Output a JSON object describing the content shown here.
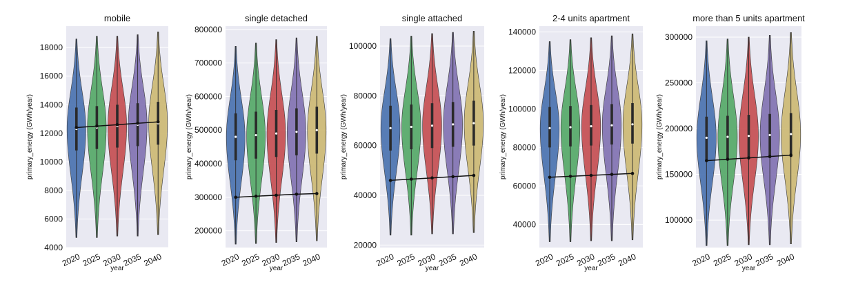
{
  "chart_data": [
    {
      "type": "violin",
      "title": "mobile",
      "xlabel": "year",
      "ylabel": "primary_energy (GWh/year)",
      "categories": [
        "2020",
        "2025",
        "2030",
        "2035",
        "2040"
      ],
      "ylim": [
        4000,
        19500
      ],
      "yticks": [
        4000,
        6000,
        8000,
        10000,
        12000,
        14000,
        16000,
        18000
      ],
      "ytick_labels": [
        "4000",
        "6000",
        "8000",
        "10000",
        "12000",
        "14000",
        "16000",
        "18000"
      ],
      "violins": [
        {
          "min": 4700,
          "max": 18600,
          "median": 12300,
          "q1": 10800,
          "q3": 13800,
          "peak": 12300
        },
        {
          "min": 4700,
          "max": 18800,
          "median": 12400,
          "q1": 10900,
          "q3": 13900,
          "peak": 12400
        },
        {
          "min": 4800,
          "max": 18800,
          "median": 12500,
          "q1": 11000,
          "q3": 14000,
          "peak": 12500
        },
        {
          "min": 4800,
          "max": 18900,
          "median": 12600,
          "q1": 11100,
          "q3": 14100,
          "peak": 12600
        },
        {
          "min": 4900,
          "max": 19100,
          "median": 12700,
          "q1": 11200,
          "q3": 14200,
          "peak": 12700
        }
      ],
      "trend_line": [
        12400,
        12500,
        12600,
        12700,
        12800
      ]
    },
    {
      "type": "violin",
      "title": "single detached",
      "xlabel": "year",
      "ylabel": "primary_energy (GWh/year)",
      "categories": [
        "2020",
        "2025",
        "2030",
        "2035",
        "2040"
      ],
      "ylim": [
        150000,
        810000
      ],
      "yticks": [
        200000,
        300000,
        400000,
        500000,
        600000,
        700000,
        800000
      ],
      "ytick_labels": [
        "200000",
        "300000",
        "400000",
        "500000",
        "600000",
        "700000",
        "800000"
      ],
      "violins": [
        {
          "min": 160000,
          "max": 750000,
          "median": 480000,
          "q1": 410000,
          "q3": 550000,
          "peak": 480000
        },
        {
          "min": 162000,
          "max": 760000,
          "median": 485000,
          "q1": 415000,
          "q3": 555000,
          "peak": 485000
        },
        {
          "min": 165000,
          "max": 770000,
          "median": 490000,
          "q1": 420000,
          "q3": 560000,
          "peak": 490000
        },
        {
          "min": 167000,
          "max": 775000,
          "median": 495000,
          "q1": 425000,
          "q3": 565000,
          "peak": 495000
        },
        {
          "min": 170000,
          "max": 780000,
          "median": 500000,
          "q1": 430000,
          "q3": 570000,
          "peak": 500000
        }
      ],
      "trend_line": [
        300000,
        303000,
        306000,
        309000,
        311000
      ]
    },
    {
      "type": "violin",
      "title": "single attached",
      "xlabel": "year",
      "ylabel": "primary_energy (GWh/year)",
      "categories": [
        "2020",
        "2025",
        "2030",
        "2035",
        "2040"
      ],
      "ylim": [
        19000,
        108000
      ],
      "yticks": [
        20000,
        40000,
        60000,
        80000,
        100000
      ],
      "ytick_labels": [
        "20000",
        "40000",
        "60000",
        "80000",
        "100000"
      ],
      "violins": [
        {
          "min": 24000,
          "max": 103000,
          "median": 67000,
          "q1": 58000,
          "q3": 76000,
          "peak": 67000
        },
        {
          "min": 24000,
          "max": 104000,
          "median": 67500,
          "q1": 58500,
          "q3": 76500,
          "peak": 67500
        },
        {
          "min": 24500,
          "max": 105000,
          "median": 68000,
          "q1": 59000,
          "q3": 77000,
          "peak": 68000
        },
        {
          "min": 24500,
          "max": 105500,
          "median": 68500,
          "q1": 59500,
          "q3": 77500,
          "peak": 68500
        },
        {
          "min": 25000,
          "max": 106000,
          "median": 69000,
          "q1": 60000,
          "q3": 78000,
          "peak": 69000
        }
      ],
      "trend_line": [
        46000,
        46500,
        47000,
        47500,
        48000
      ]
    },
    {
      "type": "violin",
      "title": "2-4 units apartment",
      "xlabel": "year",
      "ylabel": "primary_energy (GWh/year)",
      "categories": [
        "2020",
        "2025",
        "2030",
        "2035",
        "2040"
      ],
      "ylim": [
        28000,
        143000
      ],
      "yticks": [
        40000,
        60000,
        80000,
        100000,
        120000,
        140000
      ],
      "ytick_labels": [
        "40000",
        "60000",
        "80000",
        "100000",
        "120000",
        "140000"
      ],
      "violins": [
        {
          "min": 31000,
          "max": 135000,
          "median": 90000,
          "q1": 80000,
          "q3": 101000,
          "peak": 90000
        },
        {
          "min": 31000,
          "max": 136000,
          "median": 90500,
          "q1": 80500,
          "q3": 101500,
          "peak": 90500
        },
        {
          "min": 31500,
          "max": 137000,
          "median": 91000,
          "q1": 81000,
          "q3": 102000,
          "peak": 91000
        },
        {
          "min": 31500,
          "max": 138000,
          "median": 91500,
          "q1": 81500,
          "q3": 102500,
          "peak": 91500
        },
        {
          "min": 32000,
          "max": 139000,
          "median": 92000,
          "q1": 82000,
          "q3": 103000,
          "peak": 92000
        }
      ],
      "trend_line": [
        64500,
        65000,
        65500,
        66000,
        66500
      ]
    },
    {
      "type": "violin",
      "title": "more than 5 units apartment",
      "xlabel": "year",
      "ylabel": "primary_energy (GWh/year)",
      "categories": [
        "2020",
        "2025",
        "2030",
        "2035",
        "2040"
      ],
      "ylim": [
        70000,
        312000
      ],
      "yticks": [
        100000,
        150000,
        200000,
        250000,
        300000
      ],
      "ytick_labels": [
        "100000",
        "150000",
        "200000",
        "250000",
        "300000"
      ],
      "violins": [
        {
          "min": 72000,
          "max": 296000,
          "median": 190000,
          "q1": 165000,
          "q3": 213000,
          "peak": 190000
        },
        {
          "min": 72000,
          "max": 298000,
          "median": 191000,
          "q1": 166000,
          "q3": 214000,
          "peak": 191000
        },
        {
          "min": 73000,
          "max": 300000,
          "median": 192000,
          "q1": 167000,
          "q3": 215000,
          "peak": 192000
        },
        {
          "min": 73000,
          "max": 302000,
          "median": 193000,
          "q1": 168000,
          "q3": 216000,
          "peak": 193000
        },
        {
          "min": 74000,
          "max": 305000,
          "median": 194000,
          "q1": 169000,
          "q3": 217000,
          "peak": 194000
        }
      ],
      "trend_line": [
        165000,
        166500,
        168000,
        169500,
        171000
      ]
    }
  ],
  "colors": {
    "plot_background": "#e9e9f2",
    "series": [
      "#4a72b0",
      "#55a868",
      "#c44e52",
      "#8172b2",
      "#ccb974"
    ],
    "trend_line": "#111111",
    "grid": "#ffffff"
  }
}
